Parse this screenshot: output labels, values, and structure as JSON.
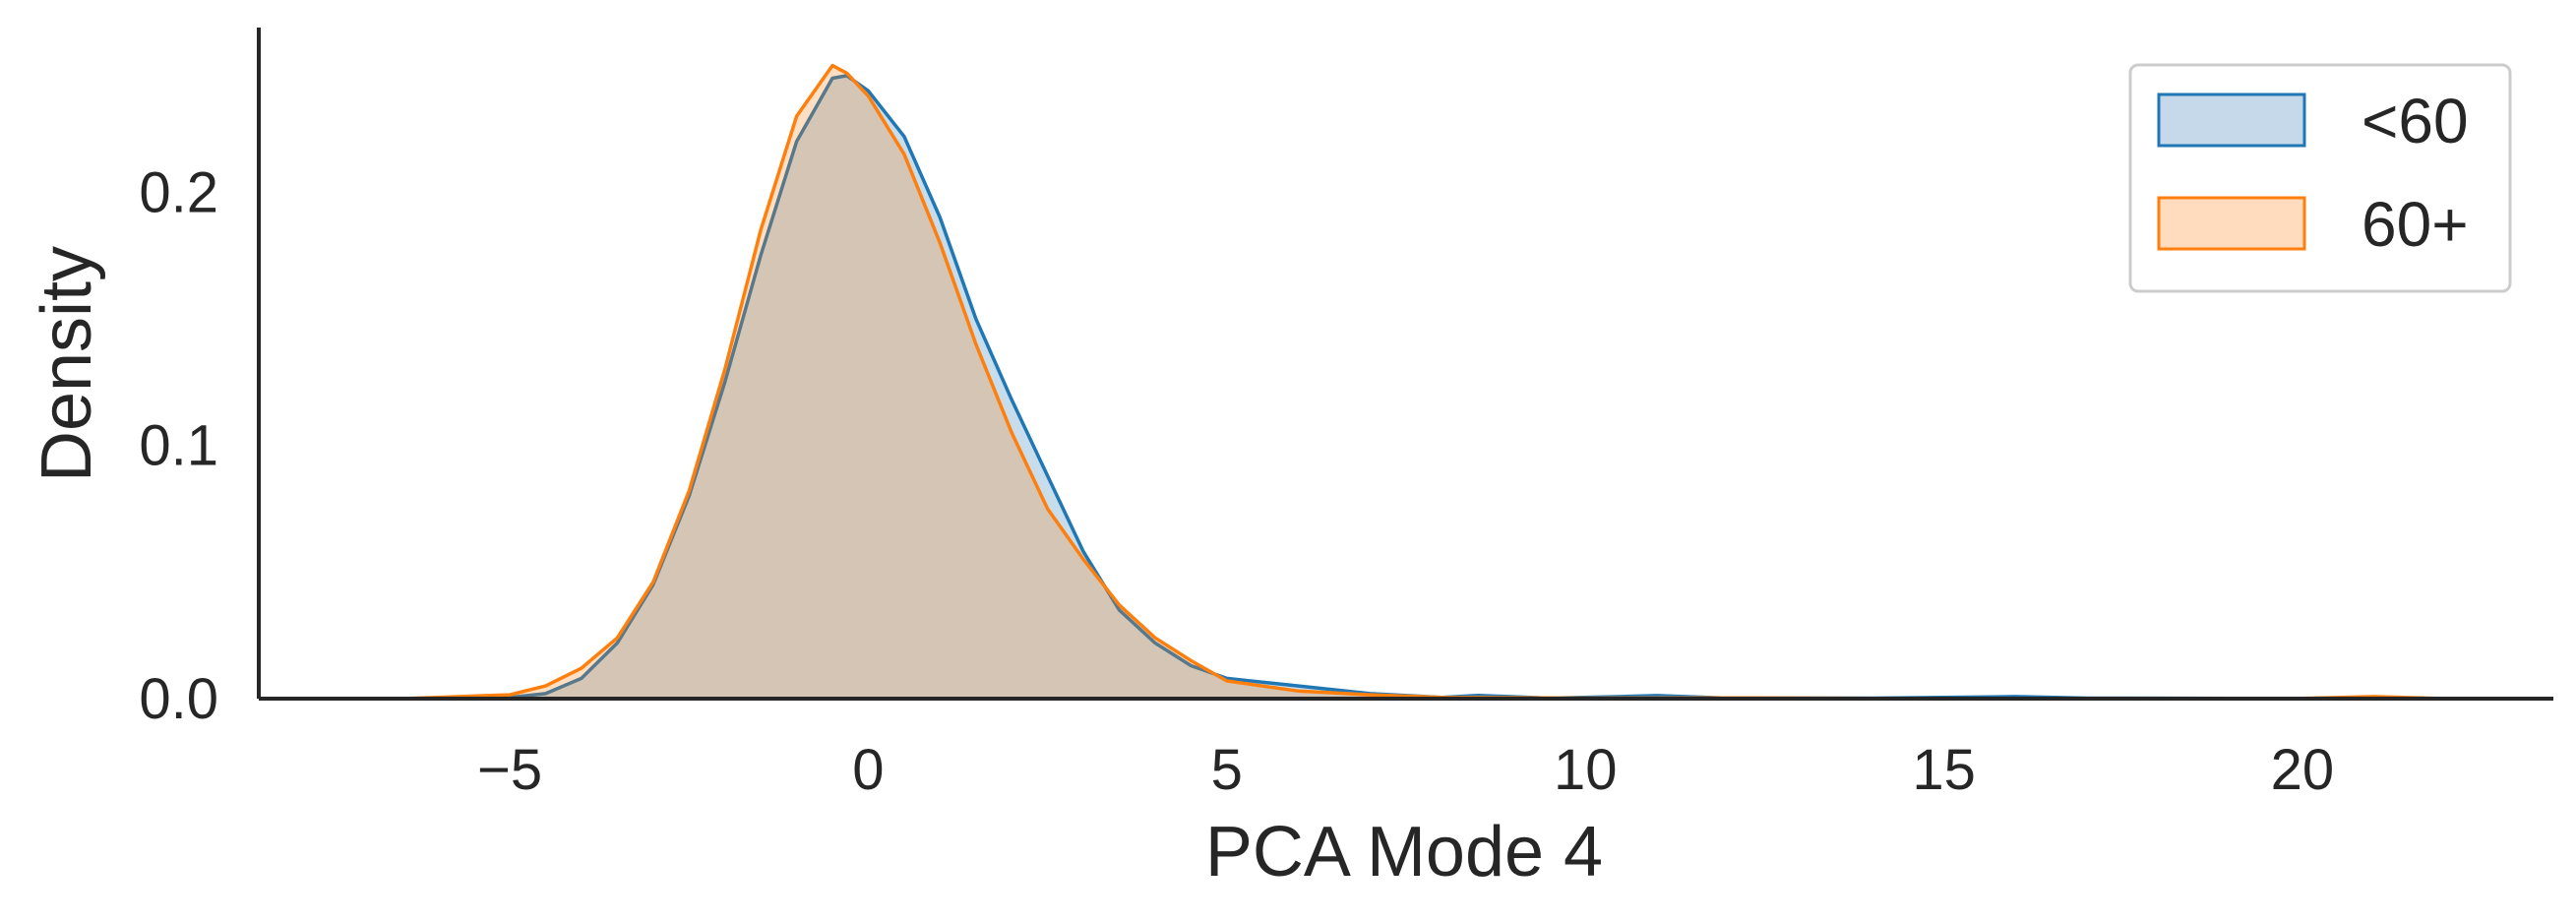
{
  "chart_data": {
    "type": "area",
    "xlabel": "PCA Mode 4",
    "ylabel": "Density",
    "xlim": [
      -8.5,
      23.5
    ],
    "ylim": [
      0,
      0.265
    ],
    "x_ticks": [
      {
        "value": -5,
        "label": "−5"
      },
      {
        "value": 0,
        "label": "0"
      },
      {
        "value": 5,
        "label": "5"
      },
      {
        "value": 10,
        "label": "10"
      },
      {
        "value": 15,
        "label": "15"
      },
      {
        "value": 20,
        "label": "20"
      }
    ],
    "y_ticks": [
      {
        "value": 0.0,
        "label": "0.0"
      },
      {
        "value": 0.1,
        "label": "0.1"
      },
      {
        "value": 0.2,
        "label": "0.2"
      }
    ],
    "grid": false,
    "legend_position": "top-right",
    "series": [
      {
        "name": "<60",
        "color": "#1f77b4",
        "fill": "#c5d9eb",
        "points": [
          [
            -6.5,
            0
          ],
          [
            -5,
            0.0005
          ],
          [
            -4.5,
            0.002
          ],
          [
            -4,
            0.008
          ],
          [
            -3.5,
            0.022
          ],
          [
            -3,
            0.045
          ],
          [
            -2.5,
            0.08
          ],
          [
            -2,
            0.125
          ],
          [
            -1.5,
            0.175
          ],
          [
            -1,
            0.22
          ],
          [
            -0.5,
            0.245
          ],
          [
            -0.3,
            0.246
          ],
          [
            0,
            0.24
          ],
          [
            0.5,
            0.222
          ],
          [
            1,
            0.19
          ],
          [
            1.5,
            0.15
          ],
          [
            2,
            0.118
          ],
          [
            2.5,
            0.088
          ],
          [
            3,
            0.058
          ],
          [
            3.5,
            0.035
          ],
          [
            4,
            0.022
          ],
          [
            4.5,
            0.013
          ],
          [
            5,
            0.008
          ],
          [
            6,
            0.005
          ],
          [
            7,
            0.002
          ],
          [
            8,
            0.0005
          ],
          [
            8.5,
            0.0013
          ],
          [
            9.5,
            0.0002
          ],
          [
            10.5,
            0.0008
          ],
          [
            11,
            0.0012
          ],
          [
            12,
            0.0002
          ],
          [
            14,
            0.0002
          ],
          [
            16,
            0.0008
          ],
          [
            17,
            0.0002
          ],
          [
            19,
            0.0001
          ],
          [
            22,
            0
          ]
        ]
      },
      {
        "name": "60+",
        "color": "#ff7f0e",
        "fill": "#ffdcbe",
        "points": [
          [
            -6.5,
            0
          ],
          [
            -5,
            0.0015
          ],
          [
            -4.5,
            0.005
          ],
          [
            -4,
            0.012
          ],
          [
            -3.5,
            0.024
          ],
          [
            -3,
            0.046
          ],
          [
            -2.5,
            0.082
          ],
          [
            -2,
            0.13
          ],
          [
            -1.5,
            0.185
          ],
          [
            -1,
            0.23
          ],
          [
            -0.5,
            0.25
          ],
          [
            -0.3,
            0.247
          ],
          [
            0,
            0.238
          ],
          [
            0.5,
            0.215
          ],
          [
            1,
            0.18
          ],
          [
            1.5,
            0.14
          ],
          [
            2,
            0.105
          ],
          [
            2.5,
            0.075
          ],
          [
            3,
            0.055
          ],
          [
            3.5,
            0.037
          ],
          [
            4,
            0.024
          ],
          [
            4.5,
            0.015
          ],
          [
            5,
            0.007
          ],
          [
            6,
            0.003
          ],
          [
            7,
            0.0015
          ],
          [
            8,
            0.0005
          ],
          [
            10,
            0.0002
          ],
          [
            12,
            0.0003
          ],
          [
            14,
            0.0001
          ],
          [
            20,
            0.0001
          ],
          [
            21,
            0.0008
          ],
          [
            22,
            0
          ]
        ]
      }
    ]
  }
}
